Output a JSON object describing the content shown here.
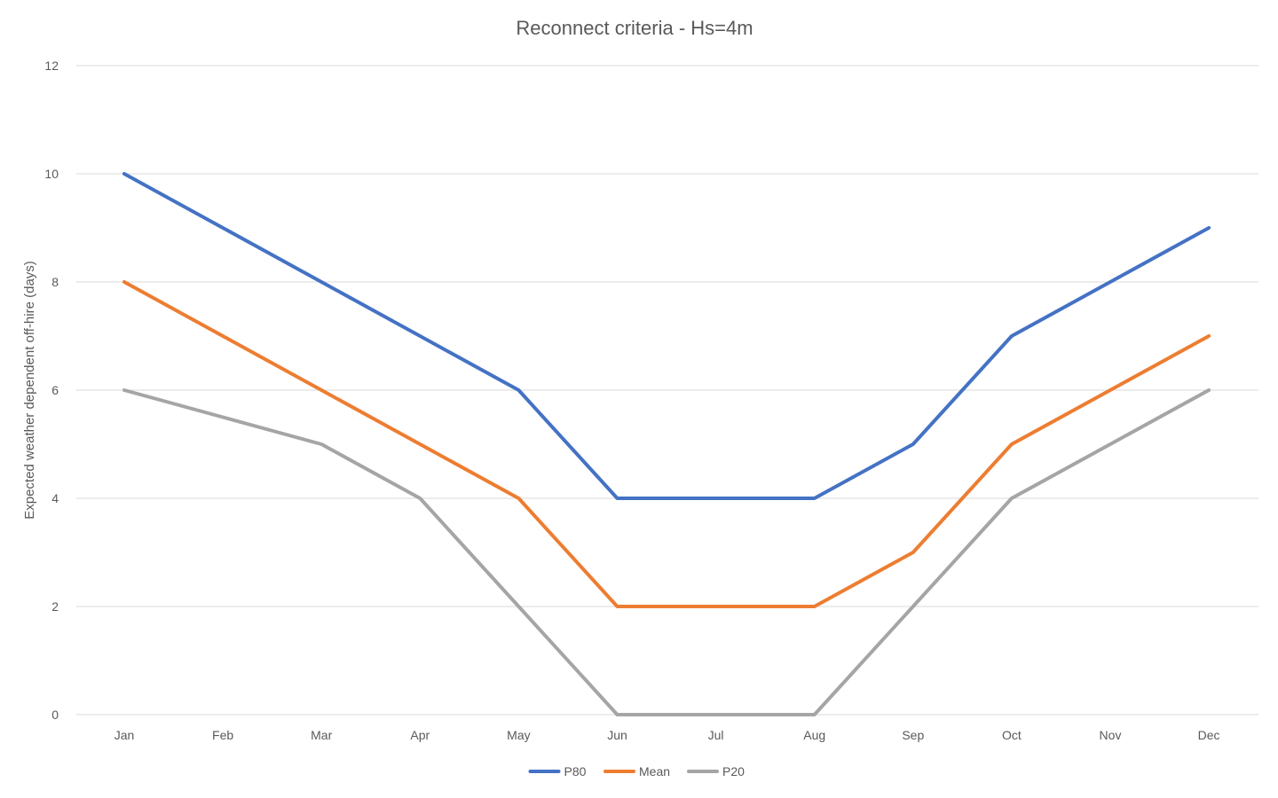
{
  "chart_data": {
    "type": "line",
    "title": "Reconnect criteria - Hs=4m",
    "xlabel": "",
    "ylabel": "Expected weather dependent off-hire (days)",
    "categories": [
      "Jan",
      "Feb",
      "Mar",
      "Apr",
      "May",
      "Jun",
      "Jul",
      "Aug",
      "Sep",
      "Oct",
      "Nov",
      "Dec"
    ],
    "ylim": [
      0,
      12
    ],
    "yticks": [
      0,
      2,
      4,
      6,
      8,
      10,
      12
    ],
    "grid": true,
    "legend_position": "bottom",
    "series": [
      {
        "name": "P80",
        "color": "#4472C4",
        "values": [
          10,
          9,
          8,
          7,
          6,
          4,
          4,
          4,
          5,
          7,
          8,
          9
        ]
      },
      {
        "name": "Mean",
        "color": "#ED7D31",
        "values": [
          8,
          7,
          6,
          5,
          4,
          2,
          2,
          2,
          3,
          5,
          6,
          7
        ]
      },
      {
        "name": "P20",
        "color": "#A5A5A5",
        "values": [
          6,
          5.5,
          5,
          4,
          2,
          0,
          0,
          0,
          2,
          4,
          5,
          6
        ]
      }
    ]
  }
}
